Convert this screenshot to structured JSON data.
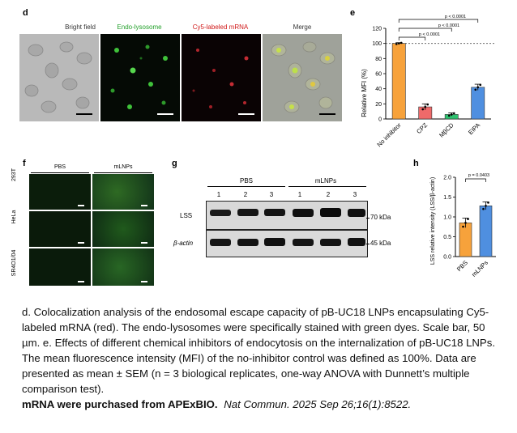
{
  "panel_d": {
    "label": "d",
    "columns": [
      "Bright field",
      "Endo-lysosome",
      "Cy5-labeled mRNA",
      "Merge"
    ],
    "column_colors": [
      "#333333",
      "#22a02a",
      "#d01818",
      "#333333"
    ]
  },
  "panel_e": {
    "label": "e",
    "ylabel": "Relative MFI (%)",
    "yticks": [
      "0",
      "20",
      "40",
      "60",
      "80",
      "100",
      "120"
    ],
    "pvalues": [
      "p < 0.0001",
      "p < 0.0001",
      "p < 0.0001"
    ]
  },
  "panel_f": {
    "label": "f",
    "columns": [
      "PBS",
      "mLNPs"
    ],
    "rows": [
      "293T",
      "HeLa",
      "SR4O1/04"
    ]
  },
  "panel_g": {
    "label": "g",
    "groups": [
      "PBS",
      "mLNPs"
    ],
    "lanes": [
      "1",
      "2",
      "3",
      "1",
      "2",
      "3"
    ],
    "rows": [
      "LSS",
      "β-actin"
    ],
    "sizes": [
      "70 kDa",
      "45 kDa"
    ]
  },
  "panel_h": {
    "label": "h",
    "ylabel": "LSS relative intensity (LSS/β-actin)",
    "yticks": [
      "0.0",
      "0.5",
      "1.0",
      "1.5",
      "2.0"
    ],
    "pvalue": "p = 0.0403"
  },
  "chart_data": [
    {
      "type": "bar",
      "panel": "e",
      "categories": [
        "No inhibitor",
        "CPZ",
        "MβCD",
        "EIPA"
      ],
      "values": [
        100,
        16,
        6,
        42
      ],
      "errors": [
        1,
        4,
        2,
        4
      ],
      "colors": [
        "#f7a23b",
        "#ef6a6a",
        "#2ec26f",
        "#4f8fe0"
      ],
      "ylabel": "Relative MFI (%)",
      "ylim": [
        0,
        120
      ],
      "reference_line": 100
    },
    {
      "type": "bar",
      "panel": "h",
      "categories": [
        "PBS",
        "mLNPs"
      ],
      "values": [
        0.85,
        1.28
      ],
      "errors": [
        0.12,
        0.1
      ],
      "colors": [
        "#f7a23b",
        "#4f8fe0"
      ],
      "ylabel": "LSS relative intensity (LSS/β-actin)",
      "ylim": [
        0,
        2.0
      ]
    }
  ],
  "caption": {
    "text": "d. Colocalization analysis of the endosomal escape capacity of pB-UC18 LNPs encapsulating Cy5-labeled mRNA (red). The endo-lysosomes were specifically stained with green dyes. Scale bar, 50 µm. e. Effects of different chemical inhibitors of endocytosis on the internalization of pB-UC18 LNPs. The mean fluorescence intensity (MFI) of the no-inhibitor control was defined as 100%. Data are presented as mean ± SEM (n = 3 biological replicates, one-way ANOVA with Dunnett’s multiple comparison test).",
    "bold": "mRNA were purchased from APExBIO.",
    "citation": "Nat Commun. 2025 Sep 26;16(1):8522."
  }
}
